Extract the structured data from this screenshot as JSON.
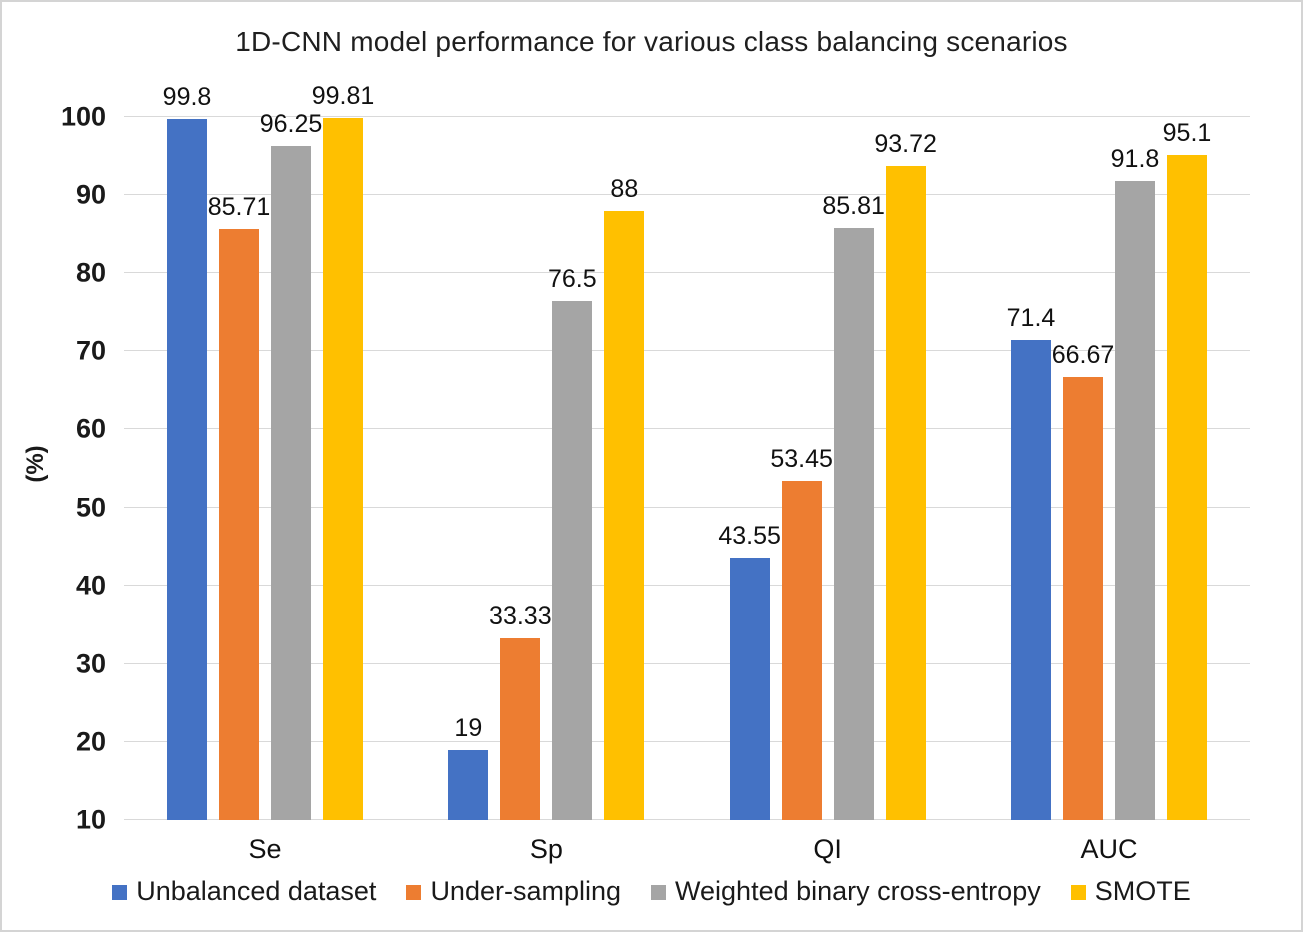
{
  "chart_data": {
    "type": "bar",
    "title": "1D-CNN model performance for various class balancing scenarios",
    "categories": [
      "Se",
      "Sp",
      "QI",
      "AUC"
    ],
    "series": [
      {
        "name": "Unbalanced dataset",
        "color": "#4472C4",
        "values": [
          99.8,
          19,
          43.55,
          71.4
        ]
      },
      {
        "name": "Under-sampling",
        "color": "#ED7D31",
        "values": [
          85.71,
          33.33,
          53.45,
          66.67
        ]
      },
      {
        "name": "Weighted binary cross-entropy",
        "color": "#A5A5A5",
        "values": [
          96.25,
          76.5,
          85.81,
          91.8
        ]
      },
      {
        "name": "SMOTE",
        "color": "#FFC000",
        "values": [
          99.81,
          88,
          93.72,
          95.1
        ]
      }
    ],
    "xlabel": "",
    "ylabel": "(%)",
    "ylim": [
      10,
      100
    ],
    "yticks": [
      10,
      20,
      30,
      40,
      50,
      60,
      70,
      80,
      90,
      100
    ],
    "ytick_labels": [
      "10",
      "20",
      "30",
      "40",
      "50",
      "60",
      "70",
      "80",
      "90",
      "100"
    ],
    "grid": "horizontal",
    "gridline_color": "#D9D9D9",
    "legend_position": "bottom",
    "data_labels": "outside-end"
  }
}
